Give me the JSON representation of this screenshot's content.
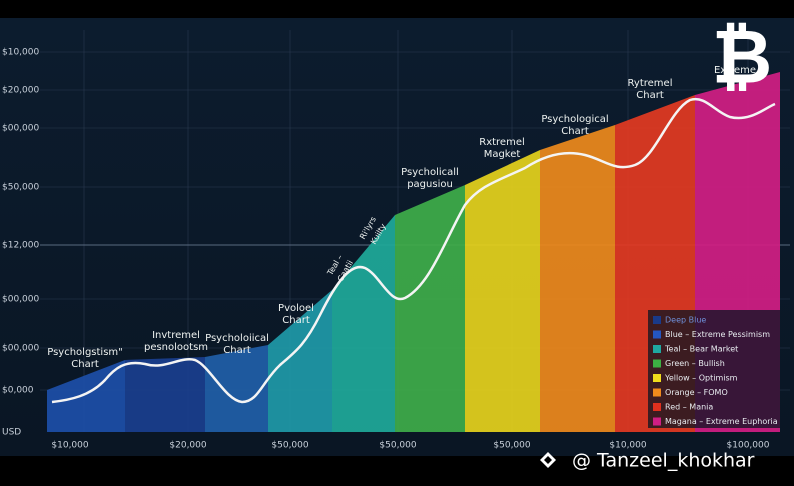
{
  "y_axis_labels": [
    "$10,000",
    "$20,000",
    "$00,000",
    "$50,000",
    "$12,000",
    "$00,000",
    "$00,000",
    "$0,000",
    "USD"
  ],
  "x_axis_labels": [
    "$10,000",
    "$20,000",
    "$50,000",
    "$50,000",
    "$50,000",
    "$10,000",
    "$100,000"
  ],
  "annotations": [
    {
      "lines": [
        "Psycholgstism\"",
        "Chart"
      ]
    },
    {
      "lines": [
        "Invtremel",
        "pesnolootsm"
      ]
    },
    {
      "lines": [
        "Psycholoiical",
        "Chart"
      ]
    },
    {
      "lines": [
        "Pvoloel",
        "Chart"
      ]
    },
    {
      "lines": [
        "Teal –",
        "Caatii"
      ]
    },
    {
      "lines": [
        "Ri'lyrs",
        "Kuilty"
      ]
    },
    {
      "lines": [
        "Psycholicall",
        "pagusiou"
      ]
    },
    {
      "lines": [
        "Rxtremel",
        "Magket"
      ]
    },
    {
      "lines": [
        "Psychological",
        "Chart"
      ]
    },
    {
      "lines": [
        "Rytremel",
        "Chart"
      ]
    },
    {
      "lines": [
        "Extreme"
      ]
    }
  ],
  "legend": [
    "Deep Blue",
    "Blue – Extreme Pessimism",
    "Teal – Bear Market",
    "Green – Bullish",
    "Yellow – Optimism",
    "Orange – FOMO",
    "Red – Mania",
    "Magana – Extreme Euphoria"
  ],
  "logo": "₿",
  "watermark": "@ Tanzeel_khokhar"
}
